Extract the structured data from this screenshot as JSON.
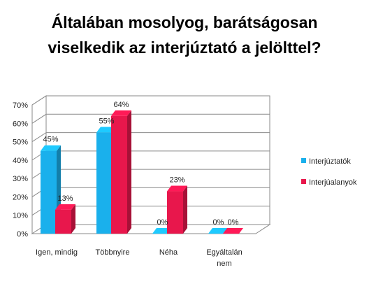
{
  "chart_data": {
    "type": "bar",
    "title_lines": [
      "Általában mosolyog, barátságosan",
      "viselkedik az interjúztató a jelölttel?"
    ],
    "categories": [
      [
        "Igen, mindig"
      ],
      [
        "Többnyire"
      ],
      [
        "Néha"
      ],
      [
        "Egyáltalán",
        "nem"
      ]
    ],
    "series": [
      {
        "name": "Interjúztatók",
        "values": [
          45,
          55,
          0,
          0
        ],
        "labels": [
          "45%",
          "55%",
          "0%",
          "0%"
        ],
        "color": "#1ab0ec"
      },
      {
        "name": "Interjúalanyok",
        "values": [
          13,
          64,
          23,
          0
        ],
        "labels": [
          "13%",
          "64%",
          "23%",
          "0%"
        ],
        "color": "#e8174c"
      }
    ],
    "y_ticks": [
      "0%",
      "10%",
      "20%",
      "30%",
      "40%",
      "50%",
      "60%",
      "70%"
    ],
    "ylim": [
      0,
      70
    ],
    "legend_position": "right",
    "style": "3d-clustered-column"
  }
}
